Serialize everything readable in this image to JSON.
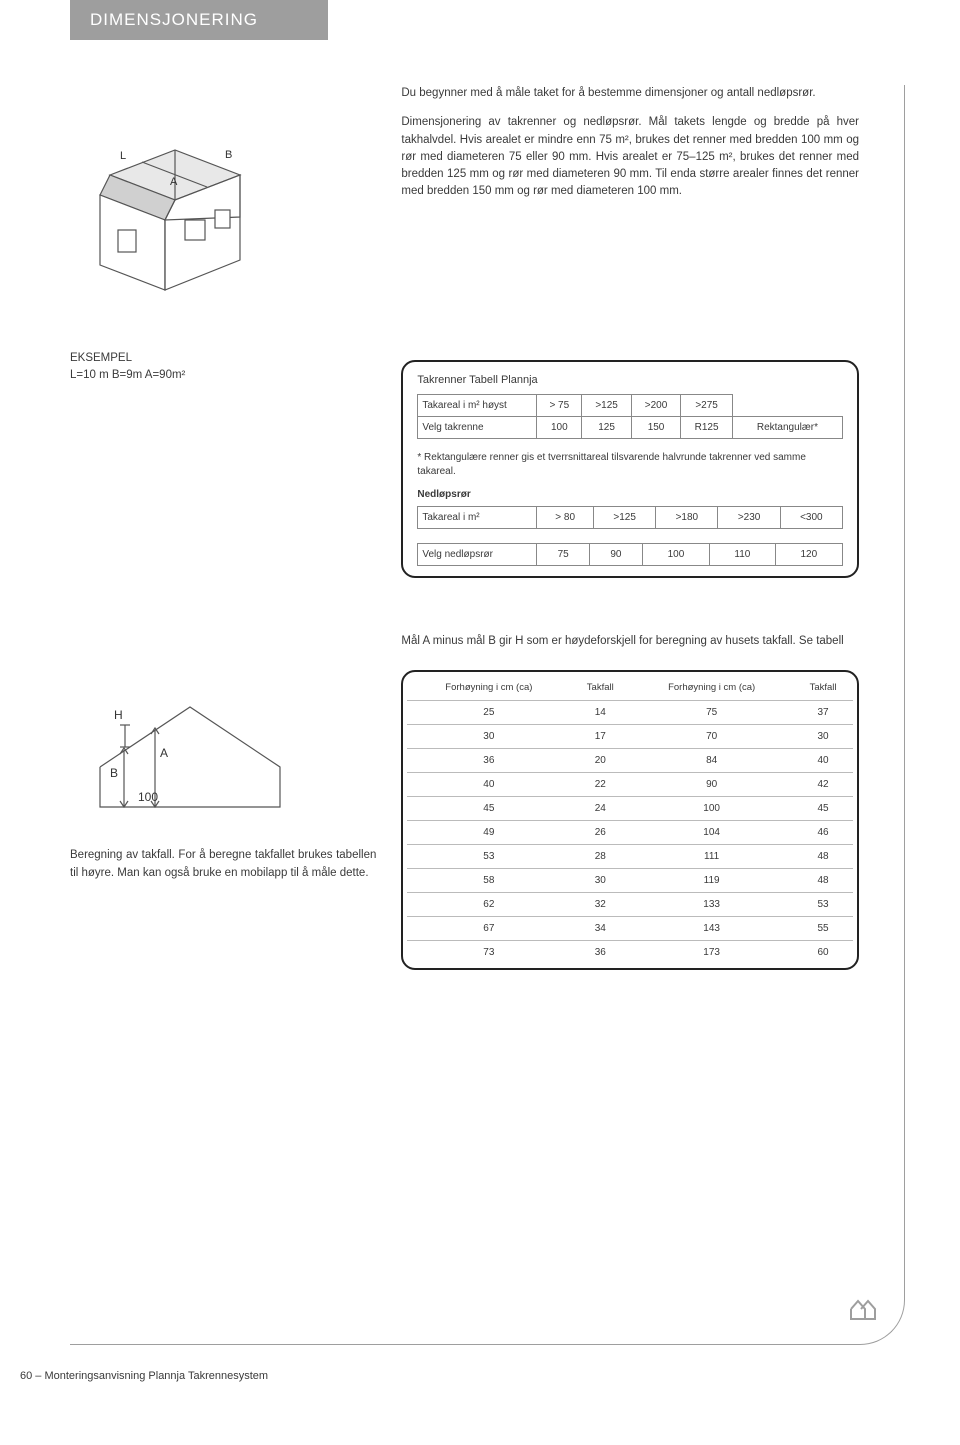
{
  "header": {
    "title": "DIMENSJONERING"
  },
  "intro": {
    "p1": "Du begynner med å måle taket for å bestemme dimensjoner og antall nedløpsrør.",
    "p2": "Dimensjonering av takrenner og nedløpsrør. Mål takets lengde og bredde på hver takhalvdel. Hvis arealet er mindre enn 75 m², brukes det renner med bredden 100 mm og rør med diameteren 75 eller 90 mm. Hvis arealet er 75–125 m², brukes det renner med bredden 125 mm og rør med diameteren 90 mm. Til enda større arealer finnes det renner med bredden 150 mm og rør med diameteren 100 mm."
  },
  "house1_labels": {
    "L": "L",
    "B": "B",
    "A": "A"
  },
  "example": {
    "line1": "EKSEMPEL",
    "line2": "L=10 m  B=9m  A=90m²"
  },
  "tabell": {
    "title": "Takrenner   Tabell Plannja",
    "row1_label": "Takareal i m² høyst",
    "row1_vals": [
      "> 75",
      ">125",
      ">200",
      ">275",
      ""
    ],
    "row2_label": "Velg takrenne",
    "row2_vals": [
      "100",
      "125",
      "150",
      "R125",
      "Rektangulær*"
    ],
    "note": "* Rektangulære renner gis et tverrsnittareal tilsvarende halvrunde takrenner ved samme takareal.",
    "sub_head": "Nedløpsrør",
    "row3_label": "Takareal i m²",
    "row3_vals": [
      "> 80",
      ">125",
      ">180",
      ">230",
      "<300"
    ],
    "row4_label": "Velg nedløpsrør",
    "row4_vals": [
      "75",
      "90",
      "100",
      "110",
      "120"
    ]
  },
  "mid_text": "Mål A minus mål B gir H som er høydeforskjell for beregning av husets takfall. Se tabell",
  "house2_labels": {
    "H": "H",
    "A": "A",
    "B": "B",
    "W": "100"
  },
  "calc_text": "Beregning av takfall. For å beregne takfallet brukes tabellen til høyre. Man kan også bruke en mobilapp til å måle dette.",
  "takfall": {
    "headers": [
      "Forhøyning i cm (ca)",
      "Takfall",
      "Forhøyning i cm (ca)",
      "Takfall"
    ],
    "rows": [
      [
        "25",
        "14",
        "75",
        "37"
      ],
      [
        "30",
        "17",
        "70",
        "30"
      ],
      [
        "36",
        "20",
        "84",
        "40"
      ],
      [
        "40",
        "22",
        "90",
        "42"
      ],
      [
        "45",
        "24",
        "100",
        "45"
      ],
      [
        "49",
        "26",
        "104",
        "46"
      ],
      [
        "53",
        "28",
        "111",
        "48"
      ],
      [
        "58",
        "30",
        "119",
        "48"
      ],
      [
        "62",
        "32",
        "133",
        "53"
      ],
      [
        "67",
        "34",
        "143",
        "55"
      ],
      [
        "73",
        "36",
        "173",
        "60"
      ]
    ]
  },
  "footer": "60 – Monteringsanvisning Plannja Takrennesystem"
}
